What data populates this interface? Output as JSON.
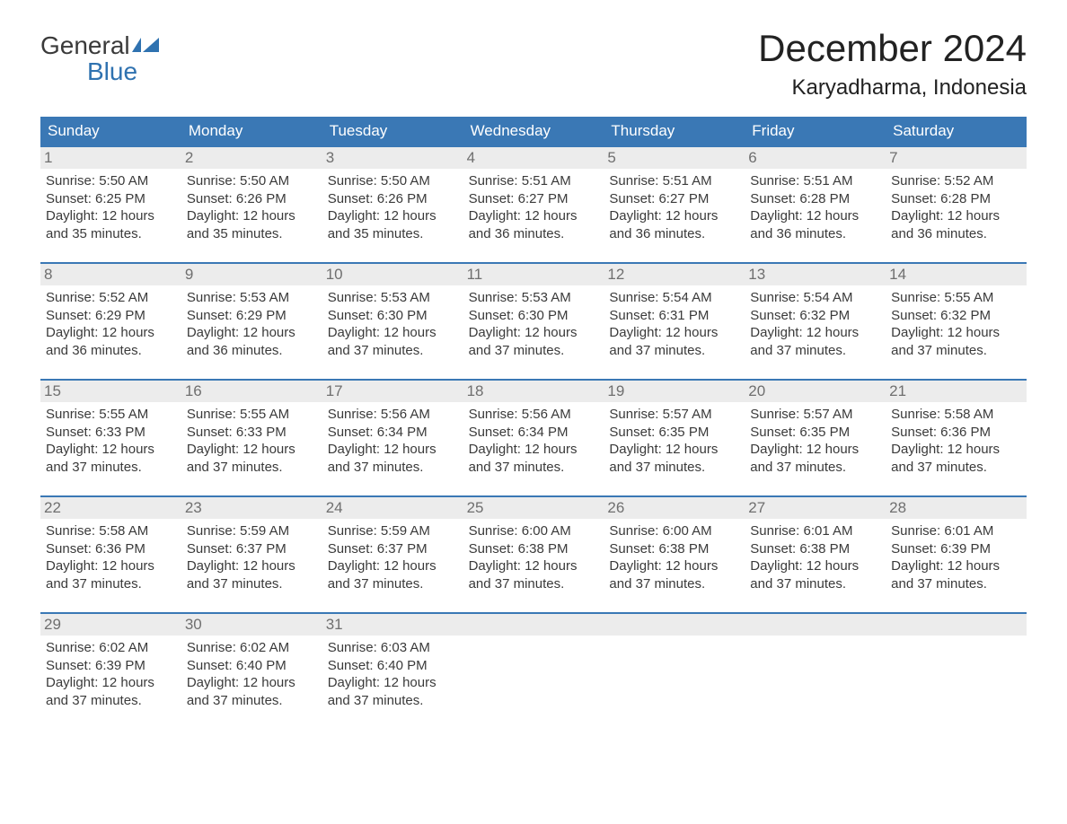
{
  "logo": {
    "line1_black": "General",
    "line2_blue": "Blue",
    "brand_color": "#2f72b0"
  },
  "title": "December 2024",
  "subtitle": "Karyadharma, Indonesia",
  "colors": {
    "header_bg": "#3a78b5",
    "header_text": "#ffffff",
    "daynum_bg": "#ececec",
    "daynum_text": "#6f6f6f",
    "body_text": "#3a3a3a",
    "week_border": "#3a78b5",
    "page_bg": "#ffffff"
  },
  "fontsize": {
    "month_title": 42,
    "subtitle": 24,
    "dow": 17,
    "daynum": 17,
    "body": 15
  },
  "days_of_week": [
    "Sunday",
    "Monday",
    "Tuesday",
    "Wednesday",
    "Thursday",
    "Friday",
    "Saturday"
  ],
  "weeks": [
    [
      {
        "n": "1",
        "sunrise": "5:50 AM",
        "sunset": "6:25 PM",
        "daylight": "12 hours and 35 minutes."
      },
      {
        "n": "2",
        "sunrise": "5:50 AM",
        "sunset": "6:26 PM",
        "daylight": "12 hours and 35 minutes."
      },
      {
        "n": "3",
        "sunrise": "5:50 AM",
        "sunset": "6:26 PM",
        "daylight": "12 hours and 35 minutes."
      },
      {
        "n": "4",
        "sunrise": "5:51 AM",
        "sunset": "6:27 PM",
        "daylight": "12 hours and 36 minutes."
      },
      {
        "n": "5",
        "sunrise": "5:51 AM",
        "sunset": "6:27 PM",
        "daylight": "12 hours and 36 minutes."
      },
      {
        "n": "6",
        "sunrise": "5:51 AM",
        "sunset": "6:28 PM",
        "daylight": "12 hours and 36 minutes."
      },
      {
        "n": "7",
        "sunrise": "5:52 AM",
        "sunset": "6:28 PM",
        "daylight": "12 hours and 36 minutes."
      }
    ],
    [
      {
        "n": "8",
        "sunrise": "5:52 AM",
        "sunset": "6:29 PM",
        "daylight": "12 hours and 36 minutes."
      },
      {
        "n": "9",
        "sunrise": "5:53 AM",
        "sunset": "6:29 PM",
        "daylight": "12 hours and 36 minutes."
      },
      {
        "n": "10",
        "sunrise": "5:53 AM",
        "sunset": "6:30 PM",
        "daylight": "12 hours and 37 minutes."
      },
      {
        "n": "11",
        "sunrise": "5:53 AM",
        "sunset": "6:30 PM",
        "daylight": "12 hours and 37 minutes."
      },
      {
        "n": "12",
        "sunrise": "5:54 AM",
        "sunset": "6:31 PM",
        "daylight": "12 hours and 37 minutes."
      },
      {
        "n": "13",
        "sunrise": "5:54 AM",
        "sunset": "6:32 PM",
        "daylight": "12 hours and 37 minutes."
      },
      {
        "n": "14",
        "sunrise": "5:55 AM",
        "sunset": "6:32 PM",
        "daylight": "12 hours and 37 minutes."
      }
    ],
    [
      {
        "n": "15",
        "sunrise": "5:55 AM",
        "sunset": "6:33 PM",
        "daylight": "12 hours and 37 minutes."
      },
      {
        "n": "16",
        "sunrise": "5:55 AM",
        "sunset": "6:33 PM",
        "daylight": "12 hours and 37 minutes."
      },
      {
        "n": "17",
        "sunrise": "5:56 AM",
        "sunset": "6:34 PM",
        "daylight": "12 hours and 37 minutes."
      },
      {
        "n": "18",
        "sunrise": "5:56 AM",
        "sunset": "6:34 PM",
        "daylight": "12 hours and 37 minutes."
      },
      {
        "n": "19",
        "sunrise": "5:57 AM",
        "sunset": "6:35 PM",
        "daylight": "12 hours and 37 minutes."
      },
      {
        "n": "20",
        "sunrise": "5:57 AM",
        "sunset": "6:35 PM",
        "daylight": "12 hours and 37 minutes."
      },
      {
        "n": "21",
        "sunrise": "5:58 AM",
        "sunset": "6:36 PM",
        "daylight": "12 hours and 37 minutes."
      }
    ],
    [
      {
        "n": "22",
        "sunrise": "5:58 AM",
        "sunset": "6:36 PM",
        "daylight": "12 hours and 37 minutes."
      },
      {
        "n": "23",
        "sunrise": "5:59 AM",
        "sunset": "6:37 PM",
        "daylight": "12 hours and 37 minutes."
      },
      {
        "n": "24",
        "sunrise": "5:59 AM",
        "sunset": "6:37 PM",
        "daylight": "12 hours and 37 minutes."
      },
      {
        "n": "25",
        "sunrise": "6:00 AM",
        "sunset": "6:38 PM",
        "daylight": "12 hours and 37 minutes."
      },
      {
        "n": "26",
        "sunrise": "6:00 AM",
        "sunset": "6:38 PM",
        "daylight": "12 hours and 37 minutes."
      },
      {
        "n": "27",
        "sunrise": "6:01 AM",
        "sunset": "6:38 PM",
        "daylight": "12 hours and 37 minutes."
      },
      {
        "n": "28",
        "sunrise": "6:01 AM",
        "sunset": "6:39 PM",
        "daylight": "12 hours and 37 minutes."
      }
    ],
    [
      {
        "n": "29",
        "sunrise": "6:02 AM",
        "sunset": "6:39 PM",
        "daylight": "12 hours and 37 minutes."
      },
      {
        "n": "30",
        "sunrise": "6:02 AM",
        "sunset": "6:40 PM",
        "daylight": "12 hours and 37 minutes."
      },
      {
        "n": "31",
        "sunrise": "6:03 AM",
        "sunset": "6:40 PM",
        "daylight": "12 hours and 37 minutes."
      },
      null,
      null,
      null,
      null
    ]
  ],
  "labels": {
    "sunrise": "Sunrise:",
    "sunset": "Sunset:",
    "daylight": "Daylight:"
  }
}
